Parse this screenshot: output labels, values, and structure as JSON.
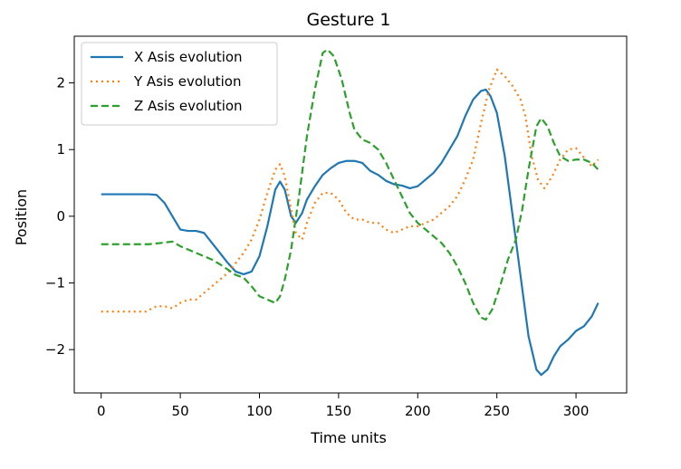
{
  "chart_data": {
    "type": "line",
    "title": "Gesture 1",
    "xlabel": "Time units",
    "ylabel": "Position",
    "xlim": [
      -17,
      332
    ],
    "ylim": [
      -2.65,
      2.7
    ],
    "xticks": [
      0,
      50,
      100,
      150,
      200,
      250,
      300
    ],
    "yticks": [
      -2,
      -1,
      0,
      1,
      2
    ],
    "xtick_labels": [
      "0",
      "50",
      "100",
      "150",
      "200",
      "250",
      "300"
    ],
    "ytick_labels": [
      "−2",
      "−1",
      "0",
      "1",
      "2"
    ],
    "grid": false,
    "legend_position": "top-left",
    "series": [
      {
        "name": "X Asis evolution",
        "color": "#1f77b4",
        "dash": "solid",
        "points": [
          [
            0,
            0.33
          ],
          [
            10,
            0.33
          ],
          [
            20,
            0.33
          ],
          [
            30,
            0.33
          ],
          [
            35,
            0.32
          ],
          [
            40,
            0.2
          ],
          [
            45,
            0.0
          ],
          [
            50,
            -0.2
          ],
          [
            55,
            -0.22
          ],
          [
            60,
            -0.22
          ],
          [
            65,
            -0.25
          ],
          [
            70,
            -0.4
          ],
          [
            75,
            -0.55
          ],
          [
            80,
            -0.7
          ],
          [
            85,
            -0.83
          ],
          [
            90,
            -0.87
          ],
          [
            95,
            -0.83
          ],
          [
            100,
            -0.6
          ],
          [
            105,
            -0.15
          ],
          [
            110,
            0.4
          ],
          [
            113,
            0.52
          ],
          [
            116,
            0.4
          ],
          [
            120,
            0.0
          ],
          [
            123,
            -0.1
          ],
          [
            127,
            0.05
          ],
          [
            130,
            0.25
          ],
          [
            135,
            0.45
          ],
          [
            140,
            0.62
          ],
          [
            145,
            0.72
          ],
          [
            150,
            0.8
          ],
          [
            155,
            0.83
          ],
          [
            160,
            0.83
          ],
          [
            165,
            0.8
          ],
          [
            170,
            0.68
          ],
          [
            175,
            0.62
          ],
          [
            180,
            0.53
          ],
          [
            185,
            0.48
          ],
          [
            190,
            0.46
          ],
          [
            195,
            0.42
          ],
          [
            200,
            0.45
          ],
          [
            205,
            0.55
          ],
          [
            210,
            0.65
          ],
          [
            215,
            0.8
          ],
          [
            220,
            1.0
          ],
          [
            225,
            1.2
          ],
          [
            230,
            1.5
          ],
          [
            235,
            1.75
          ],
          [
            240,
            1.88
          ],
          [
            243,
            1.9
          ],
          [
            246,
            1.8
          ],
          [
            250,
            1.55
          ],
          [
            255,
            0.9
          ],
          [
            260,
            0.0
          ],
          [
            265,
            -0.9
          ],
          [
            270,
            -1.8
          ],
          [
            275,
            -2.3
          ],
          [
            278,
            -2.38
          ],
          [
            282,
            -2.3
          ],
          [
            286,
            -2.1
          ],
          [
            290,
            -1.95
          ],
          [
            295,
            -1.85
          ],
          [
            300,
            -1.72
          ],
          [
            305,
            -1.65
          ],
          [
            310,
            -1.5
          ],
          [
            314,
            -1.3
          ]
        ]
      },
      {
        "name": "Y Asis evolution",
        "color": "#ff7f0e",
        "dash": "dotted",
        "points": [
          [
            0,
            -1.43
          ],
          [
            10,
            -1.43
          ],
          [
            20,
            -1.43
          ],
          [
            28,
            -1.43
          ],
          [
            35,
            -1.35
          ],
          [
            40,
            -1.35
          ],
          [
            45,
            -1.38
          ],
          [
            50,
            -1.3
          ],
          [
            55,
            -1.25
          ],
          [
            60,
            -1.25
          ],
          [
            65,
            -1.15
          ],
          [
            70,
            -1.05
          ],
          [
            75,
            -0.95
          ],
          [
            80,
            -0.85
          ],
          [
            85,
            -0.7
          ],
          [
            90,
            -0.55
          ],
          [
            95,
            -0.35
          ],
          [
            100,
            -0.05
          ],
          [
            105,
            0.35
          ],
          [
            110,
            0.7
          ],
          [
            113,
            0.78
          ],
          [
            116,
            0.6
          ],
          [
            120,
            0.1
          ],
          [
            123,
            -0.25
          ],
          [
            127,
            -0.35
          ],
          [
            130,
            -0.1
          ],
          [
            135,
            0.2
          ],
          [
            140,
            0.35
          ],
          [
            145,
            0.35
          ],
          [
            150,
            0.25
          ],
          [
            155,
            0.05
          ],
          [
            160,
            -0.05
          ],
          [
            165,
            -0.05
          ],
          [
            170,
            -0.1
          ],
          [
            175,
            -0.1
          ],
          [
            180,
            -0.2
          ],
          [
            185,
            -0.25
          ],
          [
            190,
            -0.2
          ],
          [
            195,
            -0.15
          ],
          [
            200,
            -0.15
          ],
          [
            205,
            -0.1
          ],
          [
            210,
            -0.05
          ],
          [
            215,
            0.05
          ],
          [
            220,
            0.15
          ],
          [
            225,
            0.3
          ],
          [
            230,
            0.55
          ],
          [
            235,
            0.85
          ],
          [
            240,
            1.4
          ],
          [
            245,
            1.9
          ],
          [
            250,
            2.2
          ],
          [
            255,
            2.1
          ],
          [
            260,
            1.95
          ],
          [
            265,
            1.75
          ],
          [
            268,
            1.5
          ],
          [
            272,
            0.9
          ],
          [
            276,
            0.55
          ],
          [
            280,
            0.42
          ],
          [
            285,
            0.6
          ],
          [
            290,
            0.85
          ],
          [
            295,
            1.0
          ],
          [
            300,
            1.02
          ],
          [
            305,
            0.88
          ],
          [
            310,
            0.75
          ],
          [
            314,
            0.85
          ]
        ]
      },
      {
        "name": "Z Asis evolution",
        "color": "#2ca02c",
        "dash": "dashed",
        "points": [
          [
            0,
            -0.42
          ],
          [
            10,
            -0.42
          ],
          [
            20,
            -0.42
          ],
          [
            30,
            -0.42
          ],
          [
            38,
            -0.4
          ],
          [
            45,
            -0.38
          ],
          [
            50,
            -0.45
          ],
          [
            55,
            -0.5
          ],
          [
            60,
            -0.55
          ],
          [
            65,
            -0.6
          ],
          [
            70,
            -0.65
          ],
          [
            75,
            -0.72
          ],
          [
            80,
            -0.8
          ],
          [
            85,
            -0.88
          ],
          [
            90,
            -0.92
          ],
          [
            95,
            -1.05
          ],
          [
            100,
            -1.2
          ],
          [
            105,
            -1.25
          ],
          [
            110,
            -1.3
          ],
          [
            113,
            -1.2
          ],
          [
            116,
            -0.95
          ],
          [
            120,
            -0.5
          ],
          [
            125,
            0.3
          ],
          [
            130,
            1.2
          ],
          [
            135,
            1.9
          ],
          [
            140,
            2.45
          ],
          [
            143,
            2.5
          ],
          [
            147,
            2.4
          ],
          [
            152,
            2.05
          ],
          [
            157,
            1.55
          ],
          [
            160,
            1.3
          ],
          [
            165,
            1.15
          ],
          [
            170,
            1.1
          ],
          [
            175,
            1.0
          ],
          [
            180,
            0.8
          ],
          [
            185,
            0.55
          ],
          [
            190,
            0.3
          ],
          [
            195,
            0.05
          ],
          [
            200,
            -0.1
          ],
          [
            205,
            -0.2
          ],
          [
            210,
            -0.3
          ],
          [
            215,
            -0.4
          ],
          [
            220,
            -0.55
          ],
          [
            225,
            -0.75
          ],
          [
            230,
            -1.0
          ],
          [
            235,
            -1.3
          ],
          [
            240,
            -1.52
          ],
          [
            243,
            -1.55
          ],
          [
            247,
            -1.4
          ],
          [
            252,
            -1.05
          ],
          [
            257,
            -0.65
          ],
          [
            262,
            -0.35
          ],
          [
            266,
            0.1
          ],
          [
            270,
            0.7
          ],
          [
            275,
            1.35
          ],
          [
            278,
            1.47
          ],
          [
            282,
            1.35
          ],
          [
            286,
            1.1
          ],
          [
            290,
            0.9
          ],
          [
            295,
            0.83
          ],
          [
            300,
            0.85
          ],
          [
            305,
            0.85
          ],
          [
            310,
            0.8
          ],
          [
            314,
            0.7
          ]
        ]
      }
    ]
  }
}
